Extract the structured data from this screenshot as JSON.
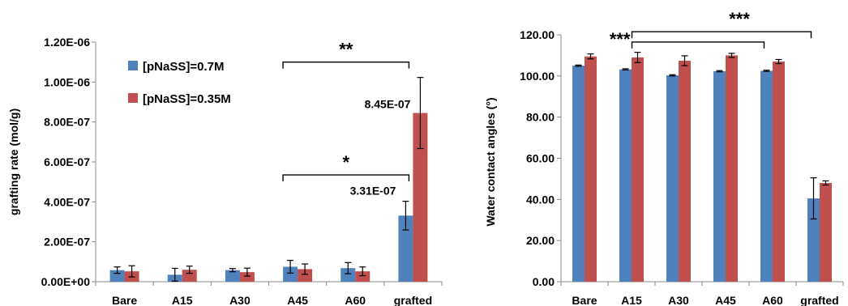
{
  "chart_data": [
    {
      "type": "bar",
      "ylabel": "grafting rate (mol/g)",
      "categories": [
        "Bare",
        "A15",
        "A30",
        "A45",
        "A60",
        "grafted"
      ],
      "ylim": [
        0,
        1.2e-06
      ],
      "yticks": [
        "0.00E+00",
        "2.00E-07",
        "4.00E-07",
        "6.00E-07",
        "8.00E-07",
        "1.00E-06",
        "1.20E-06"
      ],
      "legend_position": "top-left",
      "series": [
        {
          "name": "[pNaSS]=0.7M",
          "color": "#4f81bd",
          "values": [
            5.8e-08,
            3.5e-08,
            5.8e-08,
            7.5e-08,
            6.8e-08,
            3.31e-07
          ],
          "errors": [
            1.6e-08,
            3.2e-08,
            8e-09,
            3.2e-08,
            2.8e-08,
            7.2e-08
          ]
        },
        {
          "name": "[pNaSS]=0.35M",
          "color": "#c0504d",
          "values": [
            5.2e-08,
            6e-08,
            4.8e-08,
            6.3e-08,
            5.2e-08,
            8.45e-07
          ],
          "errors": [
            2.8e-08,
            1.8e-08,
            2e-08,
            2.6e-08,
            2.2e-08,
            1.78e-07
          ]
        }
      ],
      "annotations": [
        {
          "text": "8.45E-07",
          "series": 1,
          "category": 5
        },
        {
          "text": "3.31E-07",
          "series": 0,
          "category": 5
        }
      ],
      "significance": [
        {
          "text": "**",
          "from": 3,
          "to": 5,
          "y": 1.1e-06
        },
        {
          "text": "*",
          "from": 3,
          "to": 5,
          "y": 5.35e-07
        }
      ]
    },
    {
      "type": "bar",
      "ylabel": "Water contact angles (°)",
      "categories": [
        "Bare",
        "A15",
        "A30",
        "A45",
        "A60",
        "grafted"
      ],
      "ylim": [
        0,
        120
      ],
      "yticks": [
        "0.00",
        "20.00",
        "40.00",
        "60.00",
        "80.00",
        "100.00",
        "120.00"
      ],
      "series": [
        {
          "color": "#4f81bd",
          "values": [
            105,
            103.2,
            100.3,
            102.3,
            102.5,
            40.5
          ],
          "errors": [
            0.3,
            0.3,
            0.3,
            0.3,
            0.3,
            10
          ]
        },
        {
          "color": "#c0504d",
          "values": [
            109.5,
            109,
            107.4,
            110,
            107,
            48
          ],
          "errors": [
            1.2,
            2.5,
            2.4,
            1,
            1,
            1
          ]
        }
      ],
      "significance": [
        {
          "text": "***",
          "from": 1,
          "to": 5,
          "y": 121.5,
          "label_side": "right"
        },
        {
          "text": "***",
          "from": 1,
          "to": 4,
          "y": 116.5,
          "label_side": "left"
        }
      ]
    }
  ]
}
